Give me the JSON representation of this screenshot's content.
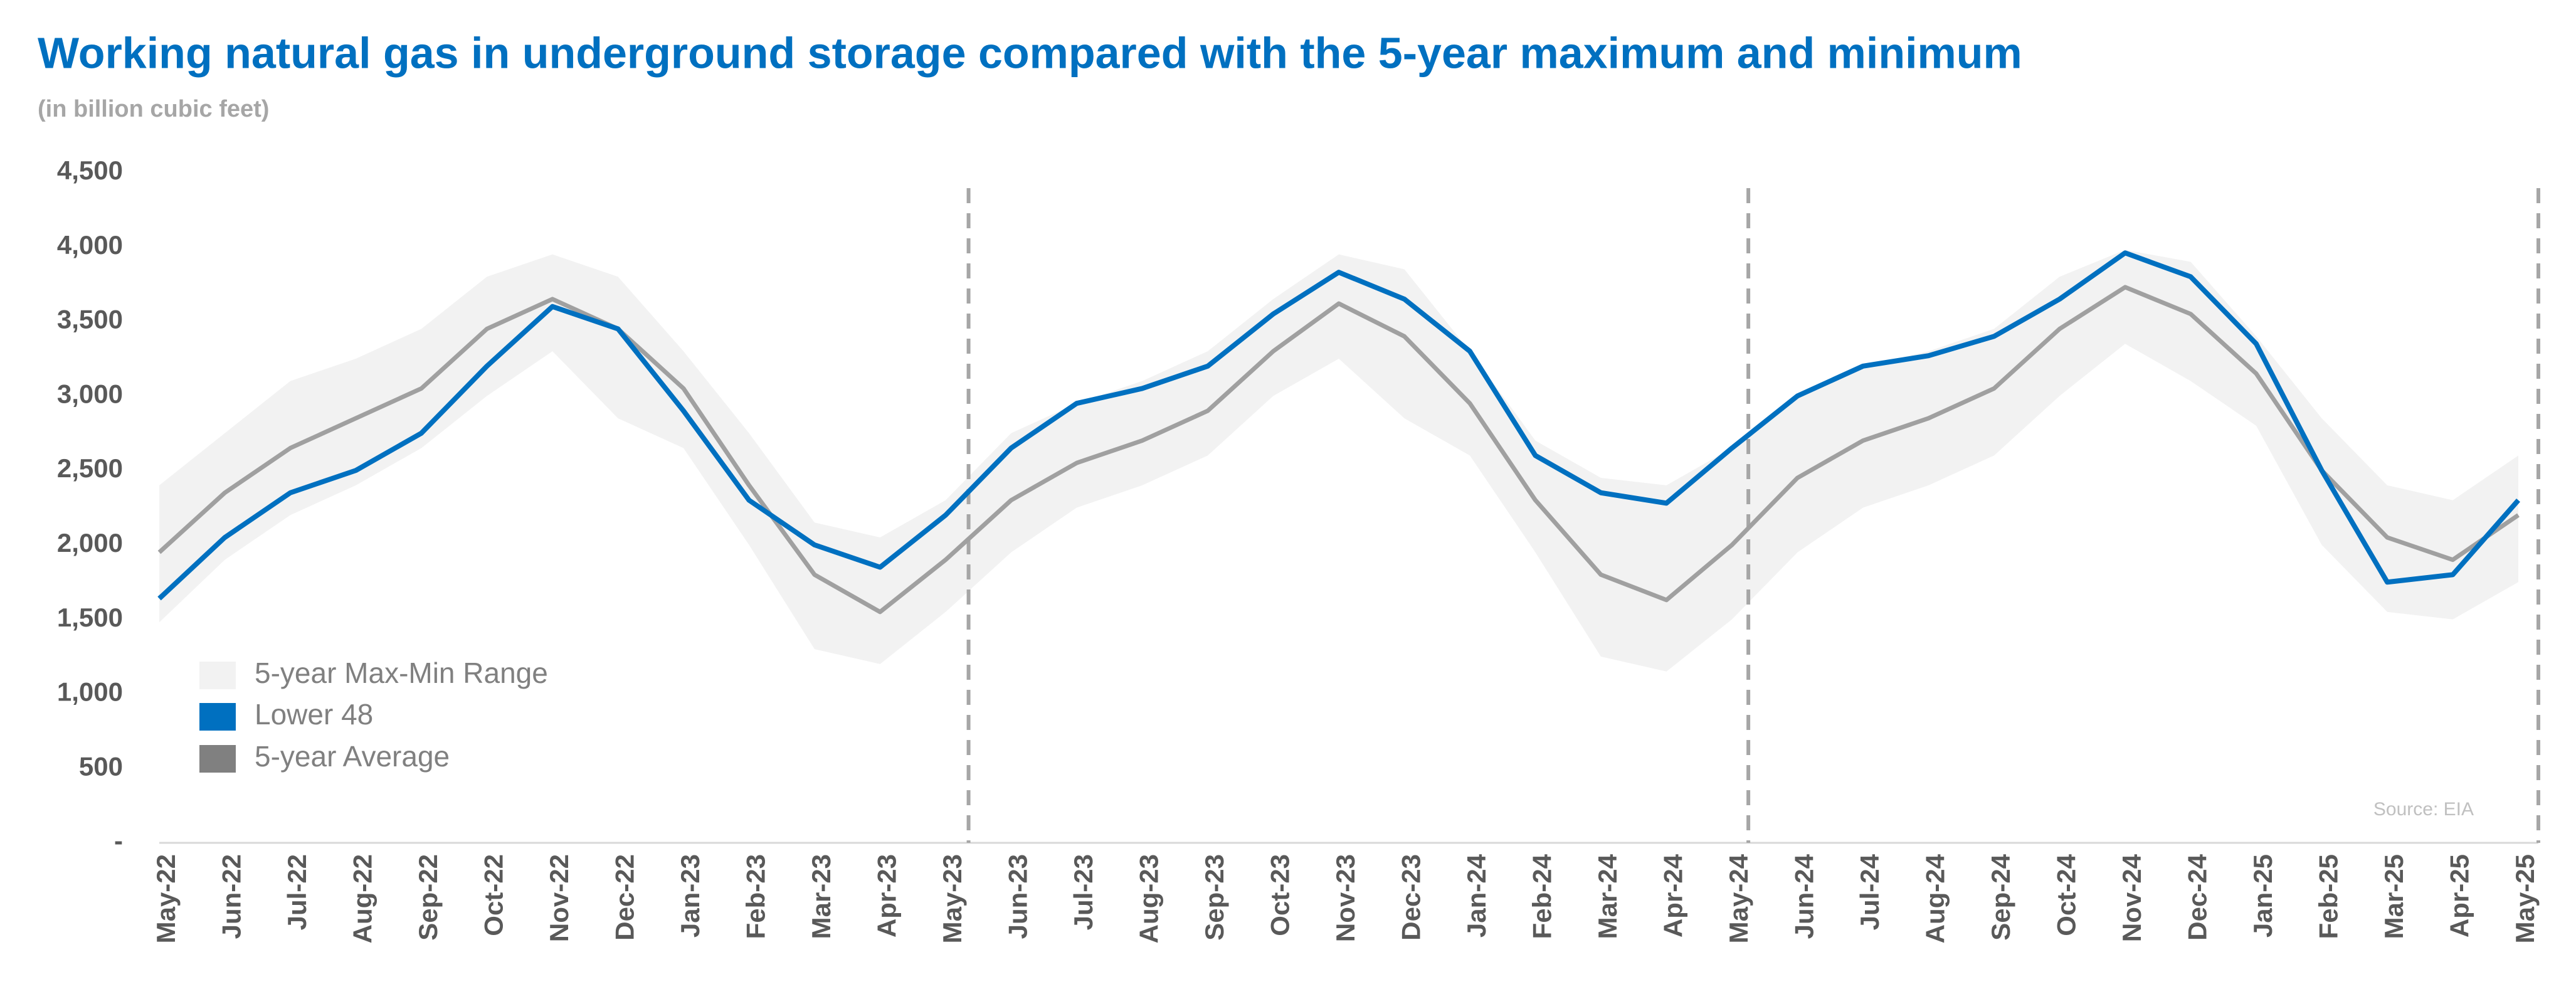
{
  "chart_data": {
    "type": "line",
    "title": "Working natural gas in underground storage compared with the  5-year maximum and minimum",
    "subtitle": "(in billion cubic feet)",
    "source": "Source: EIA",
    "categories": [
      "May-22",
      "Jun-22",
      "Jul-22",
      "Aug-22",
      "Sep-22",
      "Oct-22",
      "Nov-22",
      "Dec-22",
      "Jan-23",
      "Feb-23",
      "Mar-23",
      "Apr-23",
      "May-23",
      "Jun-23",
      "Jul-23",
      "Aug-23",
      "Sep-23",
      "Oct-23",
      "Nov-23",
      "Dec-23",
      "Jan-24",
      "Feb-24",
      "Mar-24",
      "Apr-24",
      "May-24",
      "Jun-24",
      "Jul-24",
      "Aug-24",
      "Sep-24",
      "Oct-24",
      "Nov-24",
      "Dec-24",
      "Jan-25",
      "Feb-25",
      "Mar-25",
      "Apr-25",
      "May-25"
    ],
    "range": {
      "name": "5-year Max-Min Range",
      "color": "#f2f2f2",
      "max": [
        2400,
        2750,
        3100,
        3250,
        3450,
        3800,
        3950,
        3800,
        3300,
        2750,
        2150,
        2050,
        2300,
        2750,
        2950,
        3100,
        3300,
        3650,
        3950,
        3850,
        3300,
        2700,
        2450,
        2400,
        2650,
        3000,
        3200,
        3300,
        3450,
        3800,
        3980,
        3900,
        3400,
        2850,
        2400,
        2300,
        2600
      ],
      "min": [
        1480,
        1900,
        2200,
        2400,
        2650,
        3000,
        3300,
        2850,
        2650,
        2000,
        1300,
        1200,
        1550,
        1950,
        2250,
        2400,
        2600,
        3000,
        3250,
        2850,
        2600,
        1950,
        1250,
        1150,
        1500,
        1950,
        2250,
        2400,
        2600,
        3000,
        3350,
        3100,
        2800,
        2000,
        1550,
        1500,
        1750
      ]
    },
    "series": [
      {
        "name": "Lower 48",
        "color": "#0070c0",
        "values": [
          1640,
          2050,
          2350,
          2500,
          2750,
          3200,
          3600,
          3450,
          2900,
          2300,
          2000,
          1850,
          2200,
          2650,
          2950,
          3050,
          3200,
          3550,
          3830,
          3650,
          3300,
          2600,
          2350,
          2280,
          2650,
          3000,
          3200,
          3270,
          3400,
          3650,
          3960,
          3800,
          3350,
          2500,
          1750,
          1800,
          2300
        ]
      },
      {
        "name": "5-year Average",
        "color": "#a0a0a0",
        "swatch": "#808080",
        "values": [
          1950,
          2350,
          2650,
          2850,
          3050,
          3450,
          3650,
          3450,
          3050,
          2400,
          1800,
          1550,
          1900,
          2300,
          2550,
          2700,
          2900,
          3300,
          3620,
          3400,
          2950,
          2300,
          1800,
          1630,
          2000,
          2450,
          2700,
          2850,
          3050,
          3450,
          3730,
          3550,
          3150,
          2500,
          2050,
          1900,
          2200
        ]
      }
    ],
    "ylim": [
      0,
      4500
    ],
    "yticks": [
      {
        "value": 0,
        "label": "-"
      },
      500,
      {
        "value": 1000,
        "label": "1,000"
      },
      {
        "value": 1500,
        "label": "1,500"
      },
      {
        "value": 2000,
        "label": "2,000"
      },
      {
        "value": 2500,
        "label": "2,500"
      },
      {
        "value": 3000,
        "label": "3,000"
      },
      {
        "value": 3500,
        "label": "3,500"
      },
      {
        "value": 4000,
        "label": "4,000"
      },
      {
        "value": 4500,
        "label": "4,500"
      }
    ]
  }
}
